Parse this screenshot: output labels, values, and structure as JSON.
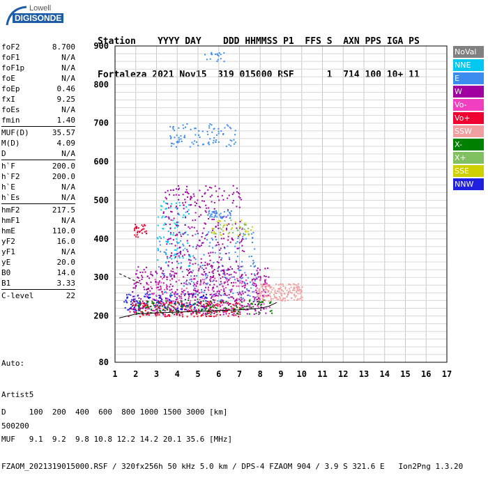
{
  "logo": {
    "line1": "Lowell",
    "line2": "DIGISONDE"
  },
  "header": {
    "line1": "Station    YYYY DAY    DDD HHMMSS P1  FFS S  AXN PPS IGA PS",
    "line2": "Fortaleza 2021 Nov15  319 015000 RSF      1  714 100 10+ 11"
  },
  "params": {
    "groups": [
      [
        [
          "foF2",
          "8.700"
        ],
        [
          "foF1",
          "N/A"
        ],
        [
          "foF1p",
          "N/A"
        ],
        [
          "foE",
          "N/A"
        ],
        [
          "foEp",
          "0.46"
        ],
        [
          "fxI",
          "9.25"
        ],
        [
          "foEs",
          "N/A"
        ],
        [
          "fmin",
          "1.40"
        ]
      ],
      [
        [
          "MUF(D)",
          "35.57"
        ],
        [
          "M(D)",
          "4.09"
        ],
        [
          "D",
          "N/A"
        ]
      ],
      [
        [
          "h`F",
          "200.0"
        ],
        [
          "h`F2",
          "200.0"
        ],
        [
          "h`E",
          "N/A"
        ],
        [
          "h`Es",
          "N/A"
        ]
      ],
      [
        [
          "hmF2",
          "217.5"
        ],
        [
          "hmF1",
          "N/A"
        ],
        [
          "hmE",
          "110.0"
        ],
        [
          "yF2",
          "16.0"
        ],
        [
          "yF1",
          "N/A"
        ],
        [
          "yE",
          "20.0"
        ],
        [
          "B0",
          "14.0"
        ],
        [
          "B1",
          "3.33"
        ]
      ],
      [
        [
          "C-level",
          "22"
        ]
      ]
    ]
  },
  "auto": {
    "line1": "Auto:",
    "line2": "Artist5",
    "line3": "500200"
  },
  "legend": [
    {
      "label": "NoVal",
      "color": "#808080"
    },
    {
      "label": "NNE",
      "color": "#00c8f0"
    },
    {
      "label": "E",
      "color": "#3c8cf0"
    },
    {
      "label": "W",
      "color": "#a000a0"
    },
    {
      "label": "Vo-",
      "color": "#f040c0"
    },
    {
      "label": "Vo+",
      "color": "#f00030"
    },
    {
      "label": "SSW",
      "color": "#f0a0a0"
    },
    {
      "label": "X-",
      "color": "#008000"
    },
    {
      "label": "X+",
      "color": "#80c060"
    },
    {
      "label": "SSE",
      "color": "#d0d000"
    },
    {
      "label": "NNW",
      "color": "#2020e0"
    }
  ],
  "footer": {
    "line1": "D     100  200  400  600  800 1000 1500 3000 [km]",
    "line2": "MUF   9.1  9.2  9.8 10.8 12.2 14.2 20.1 35.6 [MHz]",
    "line3": "FZAOM_2021319015000.RSF / 320fx256h 50 kHz 5.0 km / DPS-4 FZAOM 904 / 3.9 S 321.6 E   Ion2Png 1.3.20"
  },
  "chart_data": {
    "type": "scatter",
    "xlim": [
      1,
      17
    ],
    "ylim": [
      80,
      900
    ],
    "x_ticks": [
      1,
      2,
      3,
      4,
      5,
      6,
      7,
      8,
      9,
      10,
      11,
      12,
      13,
      14,
      15,
      16,
      17
    ],
    "y_ticks": [
      80,
      200,
      300,
      400,
      500,
      600,
      700,
      800,
      900
    ],
    "grid": true,
    "xlabel": "",
    "ylabel": "",
    "trace_x": [
      1.2,
      2.0,
      3.0,
      4.0,
      5.0,
      6.0,
      7.0,
      8.0,
      8.4,
      8.6,
      8.8
    ],
    "trace_y": [
      195,
      205,
      208,
      210,
      212,
      214,
      216,
      220,
      225,
      230,
      235
    ],
    "trace_upper_x": [
      1.2,
      1.6,
      2.0,
      2.2
    ],
    "trace_upper_y": [
      310,
      300,
      290,
      285
    ],
    "echo_clusters": [
      {
        "color": "#a000a0",
        "x": [
          1.8,
          8.4
        ],
        "y": [
          205,
          330
        ],
        "n": 520
      },
      {
        "color": "#2020e0",
        "x": [
          1.4,
          5.5
        ],
        "y": [
          215,
          260
        ],
        "n": 160
      },
      {
        "color": "#f00030",
        "x": [
          1.6,
          7.0
        ],
        "y": [
          200,
          240
        ],
        "n": 200
      },
      {
        "color": "#008000",
        "x": [
          2.0,
          8.6
        ],
        "y": [
          205,
          245
        ],
        "n": 140
      },
      {
        "color": "#f040c0",
        "x": [
          2.5,
          8.5
        ],
        "y": [
          215,
          300
        ],
        "n": 140
      },
      {
        "color": "#3c8cf0",
        "x": [
          3.0,
          7.8
        ],
        "y": [
          240,
          420
        ],
        "n": 170
      },
      {
        "color": "#00c8f0",
        "x": [
          3.0,
          4.6
        ],
        "y": [
          330,
          500
        ],
        "n": 90
      },
      {
        "color": "#a000a0",
        "x": [
          3.3,
          7.2
        ],
        "y": [
          330,
          540
        ],
        "n": 260
      },
      {
        "color": "#f0a0a0",
        "x": [
          7.8,
          10.0
        ],
        "y": [
          240,
          285
        ],
        "n": 170
      },
      {
        "color": "#3c8cf0",
        "x": [
          5.4,
          6.6
        ],
        "y": [
          455,
          475
        ],
        "n": 40
      },
      {
        "color": "#3c8cf0",
        "x": [
          3.6,
          6.8
        ],
        "y": [
          640,
          700
        ],
        "n": 90
      },
      {
        "color": "#3c8cf0",
        "x": [
          5.3,
          6.3
        ],
        "y": [
          860,
          890
        ],
        "n": 18
      },
      {
        "color": "#f00030",
        "x": [
          1.9,
          2.5
        ],
        "y": [
          405,
          440
        ],
        "n": 30
      },
      {
        "color": "#d0d000",
        "x": [
          5.6,
          7.6
        ],
        "y": [
          410,
          450
        ],
        "n": 30
      },
      {
        "color": "#80c060",
        "x": [
          5.6,
          7.5
        ],
        "y": [
          410,
          450
        ],
        "n": 25
      }
    ]
  }
}
